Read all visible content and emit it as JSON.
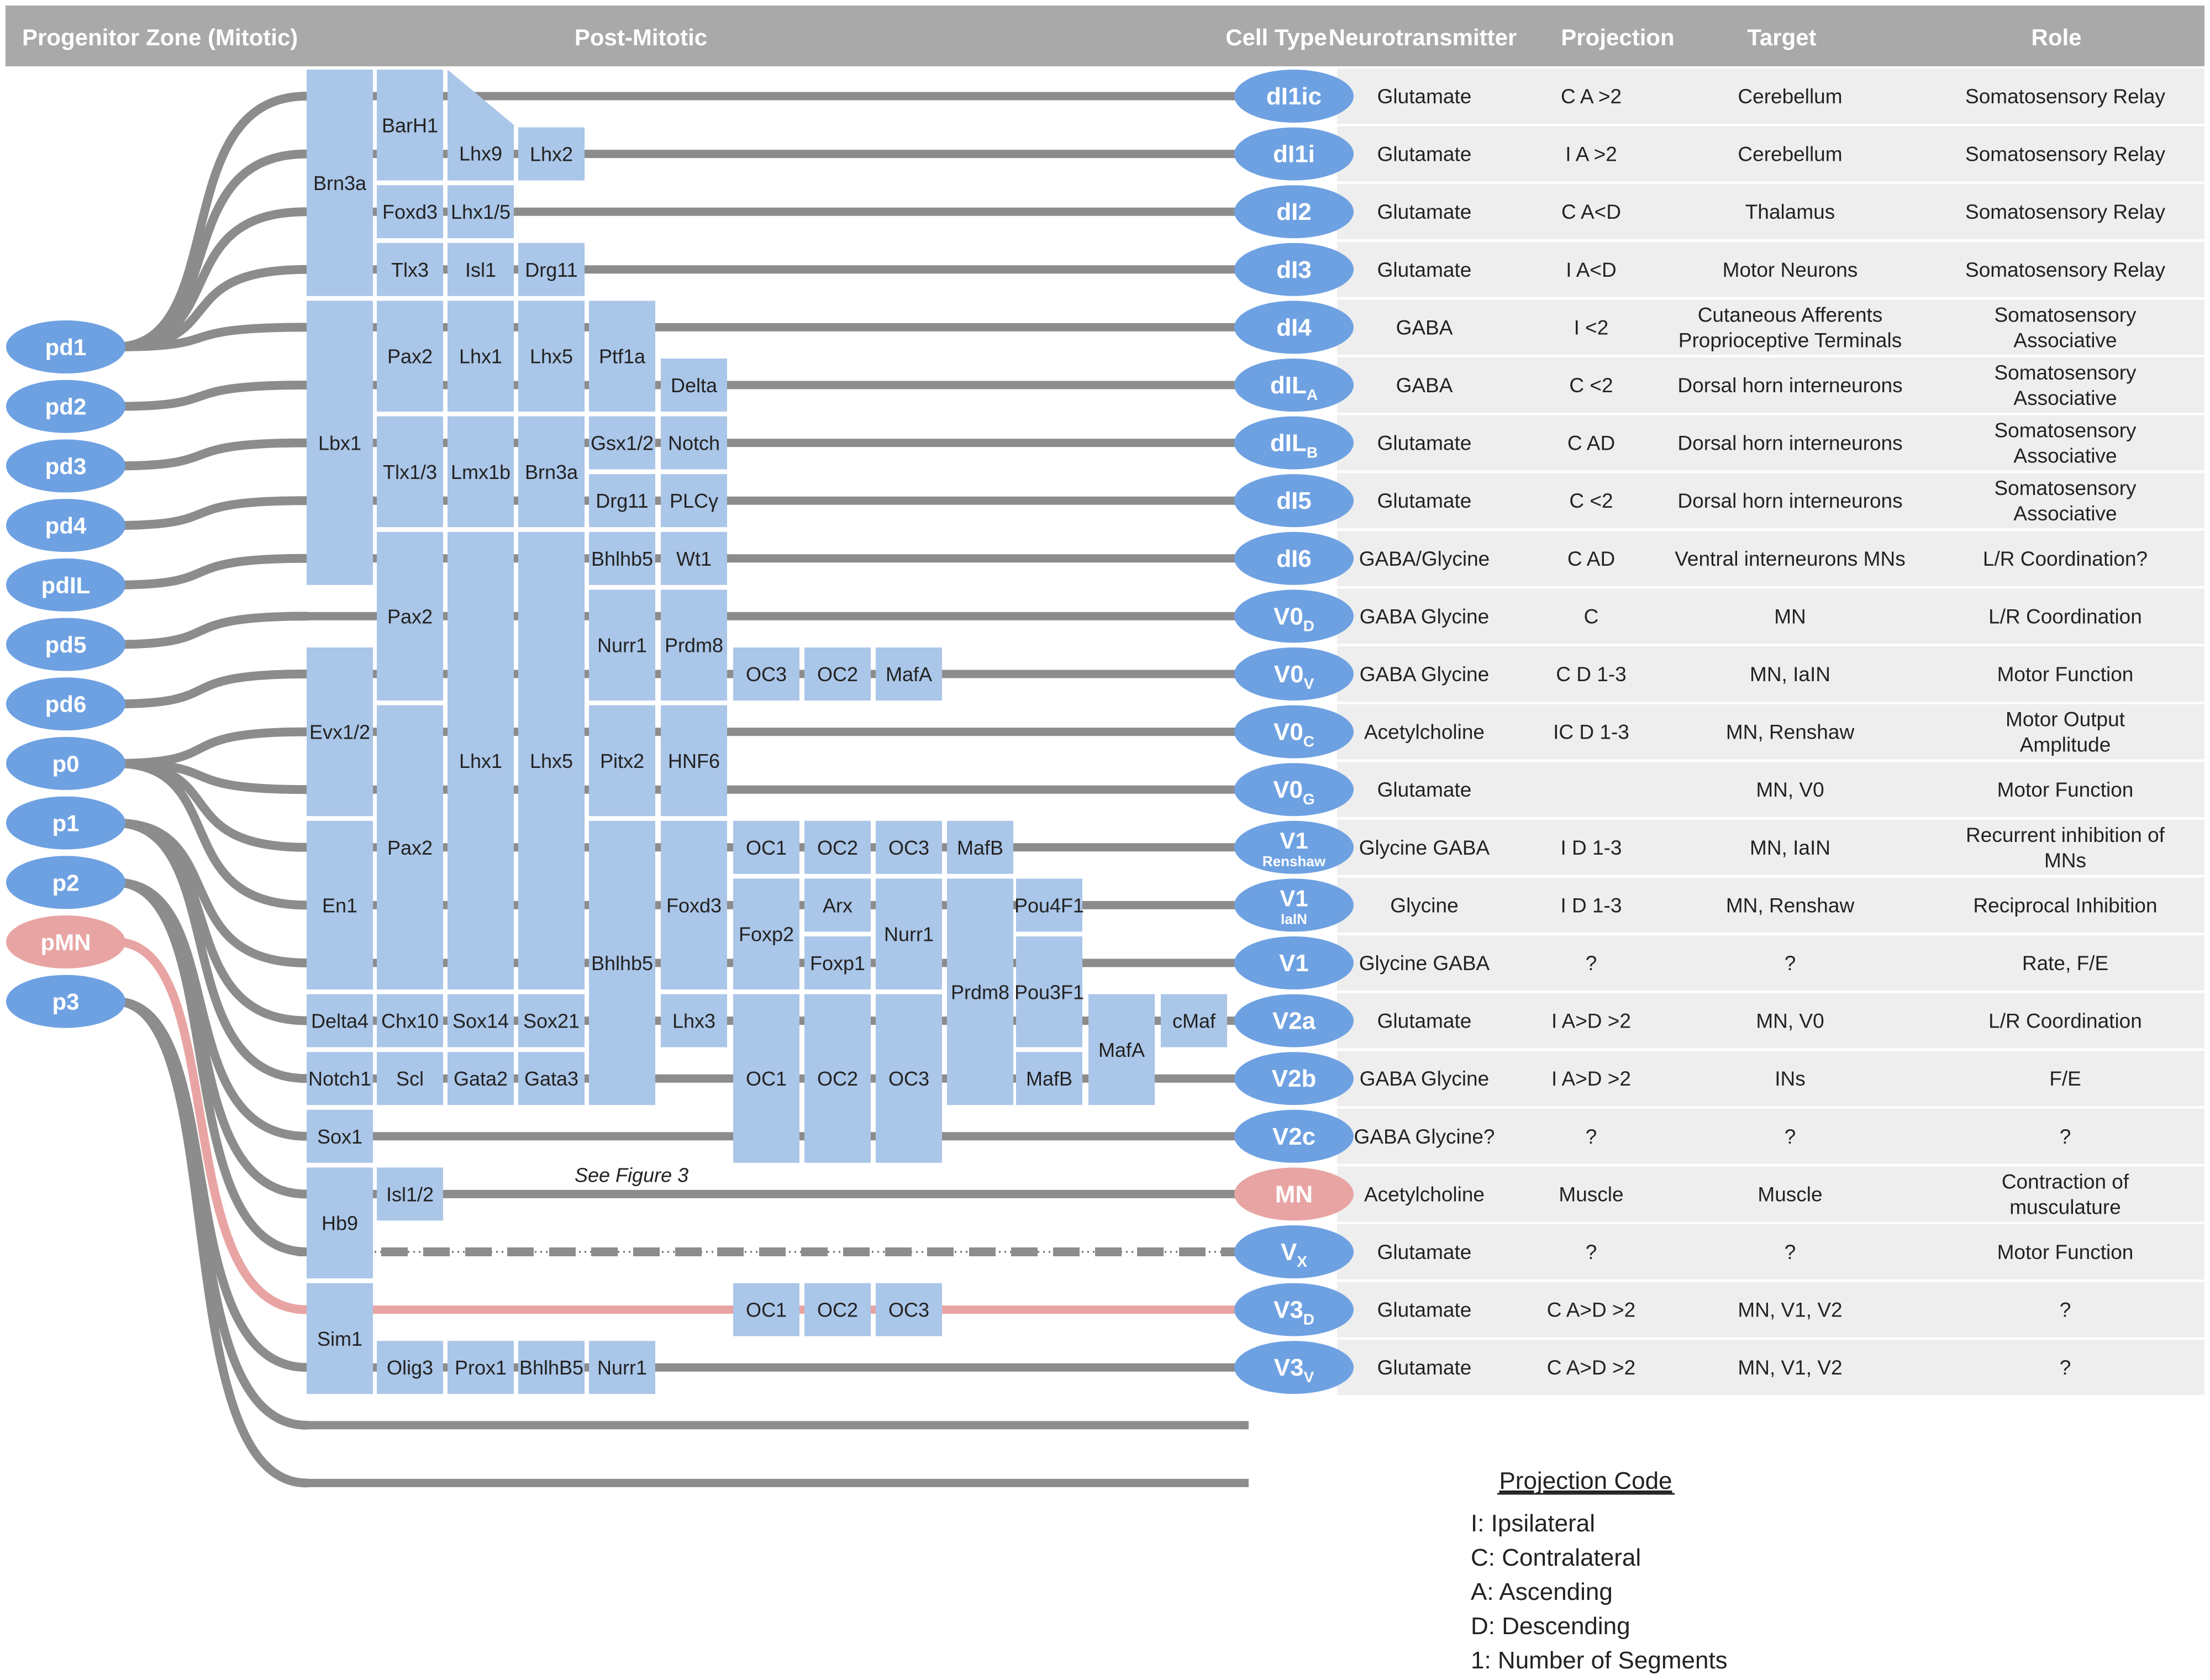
{
  "header": {
    "progenitor": "Progenitor Zone  (Mitotic)",
    "postmitotic": "Post-Mitotic",
    "celltype": "Cell Type",
    "neurotransmitter": "Neurotransmitter",
    "projection": "Projection",
    "target": "Target",
    "role": "Role"
  },
  "progenitors": [
    {
      "id": "pd1",
      "label": "pd1",
      "color": "blue"
    },
    {
      "id": "pd2",
      "label": "pd2",
      "color": "blue"
    },
    {
      "id": "pd3",
      "label": "pd3",
      "color": "blue"
    },
    {
      "id": "pd4",
      "label": "pd4",
      "color": "blue"
    },
    {
      "id": "pdIL",
      "label": "pdIL",
      "color": "blue"
    },
    {
      "id": "pd5",
      "label": "pd5",
      "color": "blue"
    },
    {
      "id": "pd6",
      "label": "pd6",
      "color": "blue"
    },
    {
      "id": "p0",
      "label": "p0",
      "color": "blue"
    },
    {
      "id": "p1",
      "label": "p1",
      "color": "blue"
    },
    {
      "id": "p2",
      "label": "p2",
      "color": "blue"
    },
    {
      "id": "pMN",
      "label": "pMN",
      "color": "pink"
    },
    {
      "id": "p3",
      "label": "p3",
      "color": "blue"
    }
  ],
  "connections": [
    {
      "from": "pd1",
      "rows": [
        0,
        1,
        2,
        3,
        4
      ]
    },
    {
      "from": "pd2",
      "rows": [
        5
      ]
    },
    {
      "from": "pd3",
      "rows": [
        6
      ]
    },
    {
      "from": "pd4",
      "rows": [
        7
      ]
    },
    {
      "from": "pdIL",
      "rows": [
        8
      ]
    },
    {
      "from": "pd5",
      "rows": [
        9
      ]
    },
    {
      "from": "pd6",
      "rows": [
        10
      ]
    },
    {
      "from": "p0",
      "rows": [
        11,
        12,
        13,
        14
      ]
    },
    {
      "from": "p1",
      "rows": [
        15,
        16,
        17
      ]
    },
    {
      "from": "p2",
      "rows": [
        18,
        19,
        20
      ]
    },
    {
      "from": "pMN",
      "rows": [
        21
      ]
    },
    {
      "from": "p3",
      "rows": [
        22,
        23,
        24
      ]
    }
  ],
  "cell_types": [
    {
      "main": "dI1ic",
      "sub": "",
      "sub_style": "",
      "color": "blue",
      "nt": "Glutamate",
      "proj": "C A >2",
      "target": [
        "Cerebellum"
      ],
      "role": [
        "Somatosensory Relay"
      ]
    },
    {
      "main": "dI1i",
      "sub": "",
      "sub_style": "",
      "color": "blue",
      "nt": "Glutamate",
      "proj": "I A >2",
      "target": [
        "Cerebellum"
      ],
      "role": [
        "Somatosensory Relay"
      ]
    },
    {
      "main": "dI2",
      "sub": "",
      "sub_style": "",
      "color": "blue",
      "nt": "Glutamate",
      "proj": "C A<D",
      "target": [
        "Thalamus"
      ],
      "role": [
        "Somatosensory Relay"
      ]
    },
    {
      "main": "dI3",
      "sub": "",
      "sub_style": "",
      "color": "blue",
      "nt": "Glutamate",
      "proj": "I A<D",
      "target": [
        "Motor Neurons"
      ],
      "role": [
        "Somatosensory Relay"
      ]
    },
    {
      "main": "dI4",
      "sub": "",
      "sub_style": "",
      "color": "blue",
      "nt": "GABA",
      "proj": "I <2",
      "target": [
        "Cutaneous Afferents",
        "Proprioceptive Terminals"
      ],
      "role": [
        "Somatosensory",
        "Associative"
      ]
    },
    {
      "main": "dIL",
      "sub": "A",
      "sub_style": "subscript",
      "color": "blue",
      "nt": "GABA",
      "proj": "C <2",
      "target": [
        "Dorsal horn interneurons"
      ],
      "role": [
        "Somatosensory",
        "Associative"
      ]
    },
    {
      "main": "dIL",
      "sub": "B",
      "sub_style": "subscript",
      "color": "blue",
      "nt": "Glutamate",
      "proj": "C AD",
      "target": [
        "Dorsal horn interneurons"
      ],
      "role": [
        "Somatosensory",
        "Associative"
      ]
    },
    {
      "main": "dI5",
      "sub": "",
      "sub_style": "",
      "color": "blue",
      "nt": "Glutamate",
      "proj": "C <2",
      "target": [
        "Dorsal horn interneurons"
      ],
      "role": [
        "Somatosensory",
        "Associative"
      ]
    },
    {
      "main": "dI6",
      "sub": "",
      "sub_style": "",
      "color": "blue",
      "nt": "GABA/Glycine",
      "proj": "C AD",
      "target": [
        "Ventral interneurons MNs"
      ],
      "role": [
        "L/R Coordination?"
      ]
    },
    {
      "main": "V0",
      "sub": "D",
      "sub_style": "subscript",
      "color": "blue",
      "nt": "GABA Glycine",
      "proj": "C",
      "target": [
        "MN"
      ],
      "role": [
        "L/R Coordination"
      ]
    },
    {
      "main": "V0",
      "sub": "V",
      "sub_style": "subscript",
      "color": "blue",
      "nt": "GABA Glycine",
      "proj": "C D 1-3",
      "target": [
        "MN, IaIN"
      ],
      "role": [
        "Motor Function"
      ]
    },
    {
      "main": "V0",
      "sub": "C",
      "sub_style": "subscript",
      "color": "blue",
      "nt": "Acetylcholine",
      "proj": "IC D 1-3",
      "target": [
        "MN, Renshaw"
      ],
      "role": [
        "Motor Output",
        "Amplitude"
      ]
    },
    {
      "main": "V0",
      "sub": "G",
      "sub_style": "subscript",
      "color": "blue",
      "nt": "Glutamate",
      "proj": "",
      "target": [
        "MN, V0"
      ],
      "role": [
        "Motor Function"
      ]
    },
    {
      "main": "V1",
      "sub": "Renshaw",
      "sub_style": "below",
      "color": "blue",
      "nt": "Glycine GABA",
      "proj": "I D 1-3",
      "target": [
        "MN, IaIN"
      ],
      "role": [
        "Recurrent inhibition of",
        "MNs"
      ]
    },
    {
      "main": "V1",
      "sub": "IaIN",
      "sub_style": "below",
      "color": "blue",
      "nt": "Glycine",
      "proj": "I D 1-3",
      "target": [
        "MN, Renshaw"
      ],
      "role": [
        "Reciprocal Inhibition"
      ]
    },
    {
      "main": "V1",
      "sub": "",
      "sub_style": "",
      "color": "blue",
      "nt": "Glycine GABA",
      "proj": "?",
      "target": [
        "?"
      ],
      "role": [
        "Rate, F/E"
      ]
    },
    {
      "main": "V2a",
      "sub": "",
      "sub_style": "",
      "color": "blue",
      "nt": "Glutamate",
      "proj": "I A>D >2",
      "target": [
        "MN, V0"
      ],
      "role": [
        "L/R Coordination"
      ]
    },
    {
      "main": "V2b",
      "sub": "",
      "sub_style": "",
      "color": "blue",
      "nt": "GABA Glycine",
      "proj": "I A>D >2",
      "target": [
        "INs"
      ],
      "role": [
        "F/E"
      ]
    },
    {
      "main": "V2c",
      "sub": "",
      "sub_style": "",
      "color": "blue",
      "nt": "GABA Glycine?",
      "proj": "?",
      "target": [
        "?"
      ],
      "role": [
        "?"
      ]
    },
    {
      "main": "MN",
      "sub": "",
      "sub_style": "",
      "color": "pink",
      "nt": "Acetylcholine",
      "proj": "Muscle",
      "target": [
        "Muscle"
      ],
      "role": [
        "Contraction of",
        "musculature"
      ]
    },
    {
      "main": "V",
      "sub": "X",
      "sub_style": "subscript",
      "color": "blue",
      "nt": "Glutamate",
      "proj": "?",
      "target": [
        "?"
      ],
      "role": [
        "Motor Function"
      ]
    },
    {
      "main": "V3",
      "sub": "D",
      "sub_style": "subscript",
      "color": "blue",
      "nt": "Glutamate",
      "proj": "C A>D >2",
      "target": [
        "MN, V1, V2"
      ],
      "role": [
        "?"
      ]
    },
    {
      "main": "V3",
      "sub": "V",
      "sub_style": "subscript",
      "color": "blue",
      "nt": "Glutamate",
      "proj": "C A>D >2",
      "target": [
        "MN, V1, V2"
      ],
      "role": [
        "?"
      ]
    }
  ],
  "markers": [
    {
      "label": "Brn3a",
      "col": 0,
      "r0": 0,
      "r1": 3
    },
    {
      "label": "Lbx1",
      "col": 0,
      "r0": 4,
      "r1": 8
    },
    {
      "label": "Evx1/2",
      "col": 0,
      "r0": 10,
      "r1": 12
    },
    {
      "label": "En1",
      "col": 0,
      "r0": 13,
      "r1": 15
    },
    {
      "label": "Delta4",
      "col": 0,
      "r0": 16,
      "r1": 16
    },
    {
      "label": "Notch1",
      "col": 0,
      "r0": 17,
      "r1": 17
    },
    {
      "label": "Sox1",
      "col": 0,
      "r0": 18,
      "r1": 18
    },
    {
      "label": "Hb9",
      "col": 0,
      "r0": 19,
      "r1": 20
    },
    {
      "label": "Sim1",
      "col": 0,
      "r0": 21,
      "r1": 22
    },
    {
      "label": "BarH1",
      "col": 1,
      "r0": 0,
      "r1": 1
    },
    {
      "label": "Foxd3",
      "col": 1,
      "r0": 2,
      "r1": 2
    },
    {
      "label": "Tlx3",
      "col": 1,
      "r0": 3,
      "r1": 3
    },
    {
      "label": "Pax2",
      "col": 1,
      "r0": 4,
      "r1": 5
    },
    {
      "label": "Tlx1/3",
      "col": 1,
      "r0": 6,
      "r1": 7
    },
    {
      "label": "Pax2",
      "col": 1,
      "r0": 8,
      "r1": 10
    },
    {
      "label": "Pax2",
      "col": 1,
      "r0": 11,
      "r1": 15
    },
    {
      "label": "Chx10",
      "col": 1,
      "r0": 16,
      "r1": 16
    },
    {
      "label": "Scl",
      "col": 1,
      "r0": 17,
      "r1": 17
    },
    {
      "label": "Isl1/2",
      "col": 1,
      "r0": 19,
      "r1": 19
    },
    {
      "label": "Olig3",
      "col": 1,
      "r0": 22,
      "r1": 22
    },
    {
      "label": "Lhx1/5",
      "col": 2,
      "r0": 2,
      "r1": 2
    },
    {
      "label": "Isl1",
      "col": 2,
      "r0": 3,
      "r1": 3
    },
    {
      "label": "Lhx1",
      "col": 2,
      "r0": 4,
      "r1": 5
    },
    {
      "label": "Lmx1b",
      "col": 2,
      "r0": 6,
      "r1": 7
    },
    {
      "label": "Lhx1",
      "col": 2,
      "r0": 8,
      "r1": 15
    },
    {
      "label": "Sox14",
      "col": 2,
      "r0": 16,
      "r1": 16
    },
    {
      "label": "Gata2",
      "col": 2,
      "r0": 17,
      "r1": 17
    },
    {
      "label": "Prox1",
      "col": 2,
      "r0": 22,
      "r1": 22
    },
    {
      "label": "Lhx2",
      "col": 3,
      "r0": 1,
      "r1": 1
    },
    {
      "label": "Drg11",
      "col": 3,
      "r0": 3,
      "r1": 3
    },
    {
      "label": "Lhx5",
      "col": 3,
      "r0": 4,
      "r1": 5
    },
    {
      "label": "Brn3a",
      "col": 3,
      "r0": 6,
      "r1": 7
    },
    {
      "label": "Lhx5",
      "col": 3,
      "r0": 8,
      "r1": 15
    },
    {
      "label": "Sox21",
      "col": 3,
      "r0": 16,
      "r1": 16
    },
    {
      "label": "Gata3",
      "col": 3,
      "r0": 17,
      "r1": 17
    },
    {
      "label": "BhlhB5",
      "col": 3,
      "r0": 22,
      "r1": 22
    },
    {
      "label": "Ptf1a",
      "col": 4,
      "r0": 4,
      "r1": 5
    },
    {
      "label": "Gsx1/2",
      "col": 4,
      "r0": 6,
      "r1": 6
    },
    {
      "label": "Drg11",
      "col": 4,
      "r0": 7,
      "r1": 7
    },
    {
      "label": "Bhlhb5",
      "col": 4,
      "r0": 8,
      "r1": 8
    },
    {
      "label": "Nurr1",
      "col": 4,
      "r0": 9,
      "r1": 10
    },
    {
      "label": "Pitx2",
      "col": 4,
      "r0": 11,
      "r1": 12
    },
    {
      "label": "Bhlhb5",
      "col": 4,
      "r0": 13,
      "r1": 17
    },
    {
      "label": "Nurr1",
      "col": 4,
      "r0": 22,
      "r1": 22
    },
    {
      "label": "Delta",
      "col": 5,
      "r0": 5,
      "r1": 5
    },
    {
      "label": "Notch",
      "col": 5,
      "r0": 6,
      "r1": 6
    },
    {
      "label": "PLCγ",
      "col": 5,
      "r0": 7,
      "r1": 7
    },
    {
      "label": "Wt1",
      "col": 5,
      "r0": 8,
      "r1": 8
    },
    {
      "label": "Prdm8",
      "col": 5,
      "r0": 9,
      "r1": 10
    },
    {
      "label": "HNF6",
      "col": 5,
      "r0": 11,
      "r1": 12
    },
    {
      "label": "Foxd3",
      "col": 5,
      "r0": 13,
      "r1": 15
    },
    {
      "label": "Lhx3",
      "col": 5,
      "r0": 16,
      "r1": 16
    },
    {
      "label": "OC3",
      "col": 6,
      "r0": 10,
      "r1": 10
    },
    {
      "label": "OC1",
      "col": 6,
      "r0": 13,
      "r1": 13
    },
    {
      "label": "Foxp2",
      "col": 6,
      "r0": 14,
      "r1": 15
    },
    {
      "label": "OC1",
      "col": 6,
      "r0": 16,
      "r1": 18
    },
    {
      "label": "OC1",
      "col": 6,
      "r0": 21,
      "r1": 21
    },
    {
      "label": "OC2",
      "col": 7,
      "r0": 10,
      "r1": 10
    },
    {
      "label": "OC2",
      "col": 7,
      "r0": 13,
      "r1": 13
    },
    {
      "label": "Arx",
      "col": 7,
      "r0": 14,
      "r1": 14
    },
    {
      "label": "Foxp1",
      "col": 7,
      "r0": 15,
      "r1": 15
    },
    {
      "label": "OC2",
      "col": 7,
      "r0": 16,
      "r1": 18
    },
    {
      "label": "OC2",
      "col": 7,
      "r0": 21,
      "r1": 21
    },
    {
      "label": "MafA",
      "col": 8,
      "r0": 10,
      "r1": 10
    },
    {
      "label": "OC3",
      "col": 8,
      "r0": 13,
      "r1": 13
    },
    {
      "label": "Nurr1",
      "col": 8,
      "r0": 14,
      "r1": 15
    },
    {
      "label": "OC3",
      "col": 8,
      "r0": 16,
      "r1": 18
    },
    {
      "label": "OC3",
      "col": 8,
      "r0": 21,
      "r1": 21
    },
    {
      "label": "MafB",
      "col": 9,
      "r0": 13,
      "r1": 13
    },
    {
      "label": "Prdm8",
      "col": 9,
      "r0": 14,
      "r1": 17
    },
    {
      "label": "Pou4F1",
      "col": 10,
      "r0": 14,
      "r1": 14
    },
    {
      "label": "Pou3F1",
      "col": 10,
      "r0": 15,
      "r1": 16
    },
    {
      "label": "MafB",
      "col": 10,
      "r0": 17,
      "r1": 17
    },
    {
      "label": "MafA",
      "col": 11,
      "r0": 16,
      "r1": 17
    },
    {
      "label": "cMaf",
      "col": 12,
      "r0": 16,
      "r1": 16
    }
  ],
  "lhx9": "Lhx9",
  "see_figure": "See Figure 3",
  "legend": {
    "title": "Projection Code",
    "items": [
      "I: Ipsilateral",
      "C: Contralateral",
      "A: Ascending",
      "D: Descending",
      "1: Number of Segments"
    ]
  },
  "colors": {
    "header_bg": "#a9a9a9",
    "blue": "#6ea1e2",
    "pink": "#e8a4a3",
    "box": "#aac6e8",
    "line": "#8c8c8c",
    "stripe": "#eeeeee"
  }
}
